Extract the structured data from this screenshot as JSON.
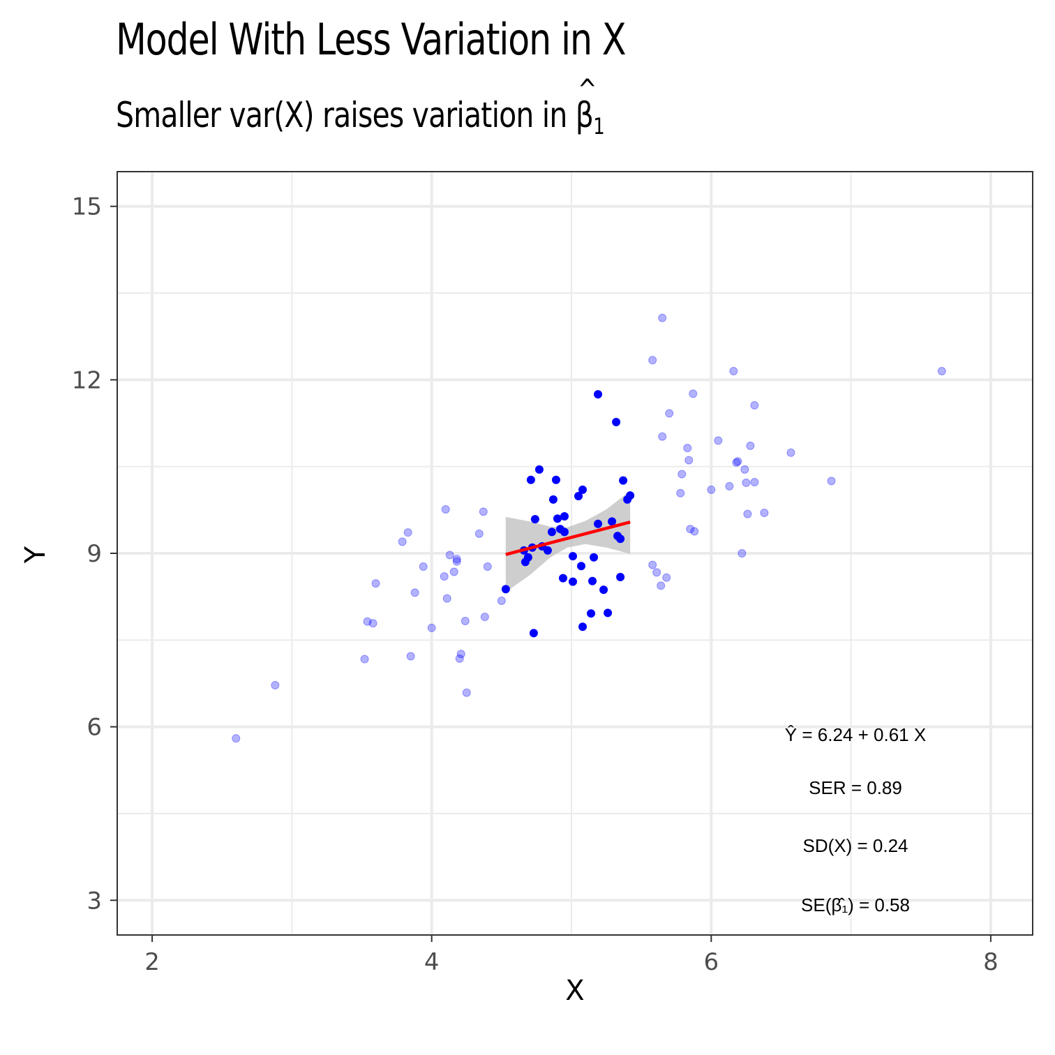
{
  "chart_data": {
    "type": "scatter",
    "title": "Model With Less Variation in X",
    "subtitle_prefix": "Smaller var(X) raises variation in ",
    "subtitle_symbol": "β",
    "subtitle_hat": "^",
    "subtitle_sub": "1",
    "xlabel": "X",
    "ylabel": "Y",
    "xlim": [
      1.75,
      8.3
    ],
    "ylim": [
      2.4,
      15.6
    ],
    "x_ticks": [
      2,
      4,
      6,
      8
    ],
    "y_ticks": [
      3,
      6,
      9,
      12,
      15
    ],
    "x_tick_labels": [
      "2",
      "4",
      "6",
      "8"
    ],
    "y_tick_labels": [
      "3",
      "6",
      "9",
      "12",
      "15"
    ],
    "grid": true,
    "colors": {
      "points": "#0000ff",
      "fit_line": "#ff0000",
      "ribbon": "#bebebe",
      "grid": "#ebebeb",
      "panel_border": "#333333"
    },
    "background_points": [
      [
        2.6,
        5.8
      ],
      [
        2.88,
        6.72
      ],
      [
        3.52,
        7.17
      ],
      [
        3.54,
        7.82
      ],
      [
        3.58,
        7.79
      ],
      [
        3.6,
        8.48
      ],
      [
        3.79,
        9.2
      ],
      [
        3.83,
        9.36
      ],
      [
        3.85,
        7.22
      ],
      [
        3.88,
        8.32
      ],
      [
        3.94,
        8.77
      ],
      [
        4.0,
        7.71
      ],
      [
        4.09,
        8.6
      ],
      [
        4.1,
        9.76
      ],
      [
        4.11,
        8.22
      ],
      [
        4.13,
        8.97
      ],
      [
        4.16,
        8.68
      ],
      [
        4.18,
        8.9
      ],
      [
        4.18,
        8.86
      ],
      [
        4.2,
        7.18
      ],
      [
        4.21,
        7.26
      ],
      [
        4.24,
        7.83
      ],
      [
        4.25,
        6.59
      ],
      [
        4.34,
        9.34
      ],
      [
        4.37,
        9.72
      ],
      [
        4.38,
        7.9
      ],
      [
        4.4,
        8.77
      ],
      [
        4.5,
        8.18
      ],
      [
        5.58,
        12.34
      ],
      [
        5.58,
        8.8
      ],
      [
        5.61,
        8.67
      ],
      [
        5.64,
        8.44
      ],
      [
        5.65,
        13.07
      ],
      [
        5.65,
        11.02
      ],
      [
        5.68,
        8.58
      ],
      [
        5.7,
        11.42
      ],
      [
        5.78,
        10.04
      ],
      [
        5.79,
        10.37
      ],
      [
        5.83,
        10.82
      ],
      [
        5.84,
        10.61
      ],
      [
        5.85,
        9.42
      ],
      [
        5.87,
        11.76
      ],
      [
        5.88,
        9.38
      ],
      [
        6.0,
        10.1
      ],
      [
        6.05,
        10.95
      ],
      [
        6.13,
        10.16
      ],
      [
        6.16,
        12.15
      ],
      [
        6.18,
        10.57
      ],
      [
        6.19,
        10.59
      ],
      [
        6.22,
        9.0
      ],
      [
        6.24,
        10.45
      ],
      [
        6.25,
        10.22
      ],
      [
        6.26,
        9.68
      ],
      [
        6.28,
        10.86
      ],
      [
        6.31,
        10.23
      ],
      [
        6.31,
        11.56
      ],
      [
        6.38,
        9.7
      ],
      [
        6.57,
        10.74
      ],
      [
        6.86,
        10.25
      ],
      [
        7.65,
        12.15
      ]
    ],
    "points": [
      [
        4.53,
        8.38
      ],
      [
        4.66,
        9.05
      ],
      [
        4.67,
        8.85
      ],
      [
        4.69,
        8.93
      ],
      [
        4.71,
        10.27
      ],
      [
        4.72,
        9.1
      ],
      [
        4.73,
        7.62
      ],
      [
        4.74,
        9.59
      ],
      [
        4.77,
        10.45
      ],
      [
        4.79,
        9.12
      ],
      [
        4.83,
        9.05
      ],
      [
        4.86,
        9.37
      ],
      [
        4.87,
        9.93
      ],
      [
        4.89,
        10.27
      ],
      [
        4.9,
        9.6
      ],
      [
        4.92,
        9.42
      ],
      [
        4.94,
        8.57
      ],
      [
        4.95,
        9.37
      ],
      [
        4.95,
        9.64
      ],
      [
        5.01,
        8.95
      ],
      [
        5.01,
        8.51
      ],
      [
        5.05,
        9.99
      ],
      [
        5.07,
        8.78
      ],
      [
        5.08,
        10.1
      ],
      [
        5.08,
        7.73
      ],
      [
        5.14,
        7.96
      ],
      [
        5.15,
        8.52
      ],
      [
        5.16,
        8.93
      ],
      [
        5.19,
        11.75
      ],
      [
        5.19,
        9.51
      ],
      [
        5.23,
        8.37
      ],
      [
        5.26,
        7.97
      ],
      [
        5.29,
        9.55
      ],
      [
        5.32,
        11.27
      ],
      [
        5.33,
        9.3
      ],
      [
        5.35,
        9.25
      ],
      [
        5.35,
        8.59
      ],
      [
        5.37,
        10.26
      ],
      [
        5.4,
        9.93
      ],
      [
        5.42,
        10.0
      ]
    ],
    "fit": {
      "x": [
        4.53,
        5.42
      ],
      "y": [
        8.98,
        9.54
      ]
    },
    "ribbon": {
      "x": [
        4.53,
        4.7,
        4.85,
        4.97,
        5.1,
        5.25,
        5.42
      ],
      "upper": [
        9.63,
        9.55,
        9.46,
        9.45,
        9.56,
        9.76,
        10.08
      ],
      "lower": [
        8.33,
        8.62,
        8.93,
        9.1,
        9.16,
        9.1,
        8.99
      ]
    },
    "annotations": {
      "equation": "Ŷ = 6.24 + 0.61 X",
      "ser": "SER = 0.89",
      "sd_x": "SD(X) = 0.24",
      "se_beta": "SE(β̂₁) = 0.58"
    }
  }
}
